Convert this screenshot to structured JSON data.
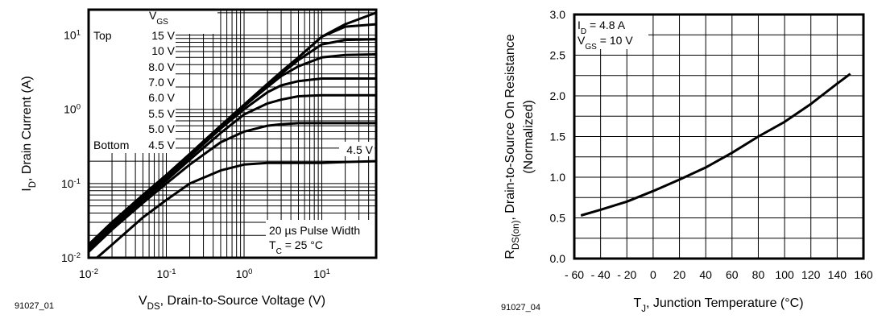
{
  "chart_data": [
    {
      "type": "line",
      "figure_id": "91027_01",
      "xlabel": {
        "main": "V",
        "sub": "DS",
        "rest": ", Drain-to-Source Voltage (V)"
      },
      "ylabel": {
        "main": "I",
        "sub": "D",
        "rest": ", Drain Current (A)"
      },
      "x_scale": "log",
      "y_scale": "log",
      "xlim": [
        0.01,
        50
      ],
      "ylim": [
        0.01,
        22
      ],
      "grid": true,
      "x_ticks": [
        {
          "base": "10",
          "exp": "-2",
          "value": 0.01
        },
        {
          "base": "10",
          "exp": "-1",
          "value": 0.1
        },
        {
          "base": "10",
          "exp": "0",
          "value": 1
        },
        {
          "base": "10",
          "exp": "1",
          "value": 10
        }
      ],
      "y_ticks": [
        {
          "base": "10",
          "exp": "1",
          "value": 10
        },
        {
          "base": "10",
          "exp": "0",
          "value": 1
        },
        {
          "base": "10",
          "exp": "-1",
          "value": 0.1
        },
        {
          "base": "10",
          "exp": "-2",
          "value": 0.01
        }
      ],
      "legend": {
        "title_main": "V",
        "title_sub": "GS",
        "top_label": "Top",
        "bottom_label": "Bottom",
        "entries": [
          "15 V",
          "10 V",
          "8.0 V",
          "7.0 V",
          "6.0 V",
          "5.5 V",
          "5.0 V",
          "4.5 V"
        ]
      },
      "annotations": {
        "curve_label": "4.5 V",
        "pulse": "20 µs Pulse Width",
        "tc_main": "T",
        "tc_sub": "C",
        "tc_rest": " = 25 °C"
      },
      "x": [
        0.01,
        0.02,
        0.05,
        0.1,
        0.2,
        0.5,
        1,
        2,
        3,
        5,
        10,
        20,
        50
      ],
      "series": [
        {
          "name": "15 V",
          "values": [
            0.015,
            0.03,
            0.07,
            0.13,
            0.25,
            0.6,
            1.15,
            2.2,
            3.2,
            5,
            9.5,
            14,
            20
          ]
        },
        {
          "name": "10 V",
          "values": [
            0.015,
            0.03,
            0.07,
            0.13,
            0.25,
            0.6,
            1.15,
            2.2,
            3.2,
            5,
            9.5,
            13,
            14
          ]
        },
        {
          "name": "8.0 V",
          "values": [
            0.015,
            0.03,
            0.07,
            0.13,
            0.25,
            0.6,
            1.1,
            2.1,
            3.0,
            4.6,
            7.5,
            8.6,
            8.8
          ]
        },
        {
          "name": "7.0 V",
          "values": [
            0.015,
            0.03,
            0.07,
            0.13,
            0.25,
            0.6,
            1.1,
            2.0,
            2.8,
            3.8,
            5.0,
            5.4,
            5.5
          ]
        },
        {
          "name": "6.0 V",
          "values": [
            0.014,
            0.028,
            0.065,
            0.12,
            0.23,
            0.55,
            1.0,
            1.7,
            2.1,
            2.4,
            2.6,
            2.6,
            2.6
          ]
        },
        {
          "name": "5.5 V",
          "values": [
            0.013,
            0.026,
            0.06,
            0.11,
            0.21,
            0.48,
            0.85,
            1.2,
            1.35,
            1.5,
            1.55,
            1.55,
            1.55
          ]
        },
        {
          "name": "5.0 V",
          "values": [
            0.012,
            0.024,
            0.055,
            0.1,
            0.18,
            0.36,
            0.5,
            0.6,
            0.63,
            0.65,
            0.65,
            0.65,
            0.65
          ]
        },
        {
          "name": "4.5 V",
          "values": [
            0.008,
            0.015,
            0.035,
            0.06,
            0.1,
            0.15,
            0.18,
            0.19,
            0.19,
            0.19,
            0.19,
            0.195,
            0.2
          ]
        }
      ]
    },
    {
      "type": "line",
      "figure_id": "91027_04",
      "xlabel": {
        "main": "T",
        "sub": "J",
        "rest": ", Junction Temperature (°C)"
      },
      "ylabel": {
        "main": "R",
        "sub": "DS(on)",
        "rest": ", Drain-to-Source On Resistance",
        "line2": "(Normalized)"
      },
      "xlim": [
        -60,
        160
      ],
      "ylim": [
        0,
        3.0
      ],
      "grid": true,
      "x_ticks": [
        "- 60",
        "- 40",
        "- 20",
        "0",
        "20",
        "40",
        "60",
        "80",
        "100",
        "120",
        "140",
        "160"
      ],
      "x_tick_values": [
        -60,
        -40,
        -20,
        0,
        20,
        40,
        60,
        80,
        100,
        120,
        140,
        160
      ],
      "y_ticks": [
        "0.0",
        "0.5",
        "1.0",
        "1.5",
        "2.0",
        "2.5",
        "3.0"
      ],
      "y_tick_values": [
        0,
        0.5,
        1.0,
        1.5,
        2.0,
        2.5,
        3.0
      ],
      "annotations": {
        "id_main": "I",
        "id_sub": "D",
        "id_rest": " = 4.8 A",
        "vgs_main": "V",
        "vgs_sub": "GS",
        "vgs_rest": " = 10 V"
      },
      "x": [
        -55,
        -40,
        -20,
        0,
        20,
        40,
        60,
        80,
        100,
        120,
        140,
        150
      ],
      "values": [
        0.53,
        0.6,
        0.7,
        0.83,
        0.97,
        1.12,
        1.3,
        1.5,
        1.68,
        1.9,
        2.15,
        2.27
      ]
    }
  ]
}
